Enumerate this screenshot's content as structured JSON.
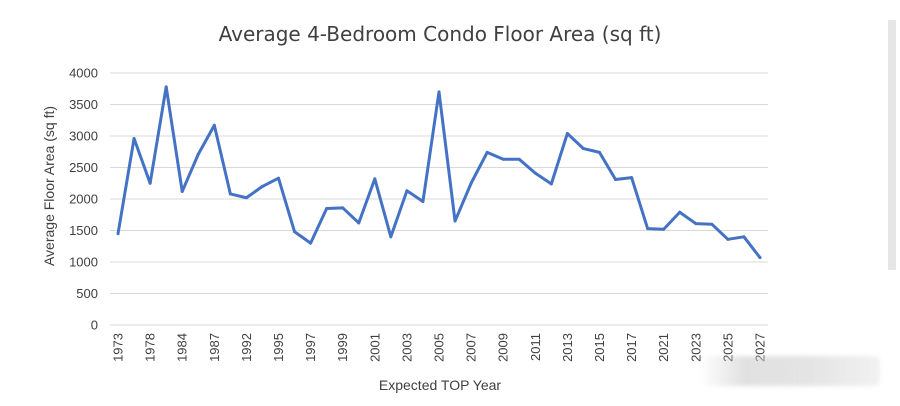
{
  "chart_data": {
    "type": "line",
    "title": "Average 4-Bedroom Condo Floor Area (sq ft)",
    "xlabel": "Expected TOP Year",
    "ylabel": "Average Floor Area (sq ft)",
    "ylim": [
      0,
      4000
    ],
    "yticks": [
      0,
      500,
      1000,
      1500,
      2000,
      2500,
      3000,
      3500,
      4000
    ],
    "grid": "horizontal",
    "legend": "none",
    "line_color": "#4472c4",
    "x": [
      "1973",
      "",
      "1978",
      "",
      "1984",
      "",
      "1987",
      "",
      "1992",
      "",
      "1995",
      "",
      "1997",
      "",
      "1999",
      "",
      "2001",
      "",
      "2003",
      "",
      "2005",
      "",
      "2007",
      "",
      "2009",
      "",
      "2011",
      "",
      "2013",
      "",
      "2015",
      "",
      "2017",
      "",
      "2021",
      "",
      "2023",
      "",
      "2025",
      "",
      "2027"
    ],
    "values": [
      1450,
      2960,
      2250,
      3780,
      2120,
      2710,
      3170,
      2080,
      2020,
      2200,
      2330,
      1480,
      1300,
      1850,
      1860,
      1620,
      2320,
      1400,
      2130,
      1960,
      3700,
      1650,
      2250,
      2740,
      2630,
      2630,
      2410,
      2240,
      3040,
      2800,
      2740,
      2310,
      2340,
      1530,
      1520,
      1790,
      1610,
      1600,
      1360,
      1400,
      1070
    ]
  }
}
